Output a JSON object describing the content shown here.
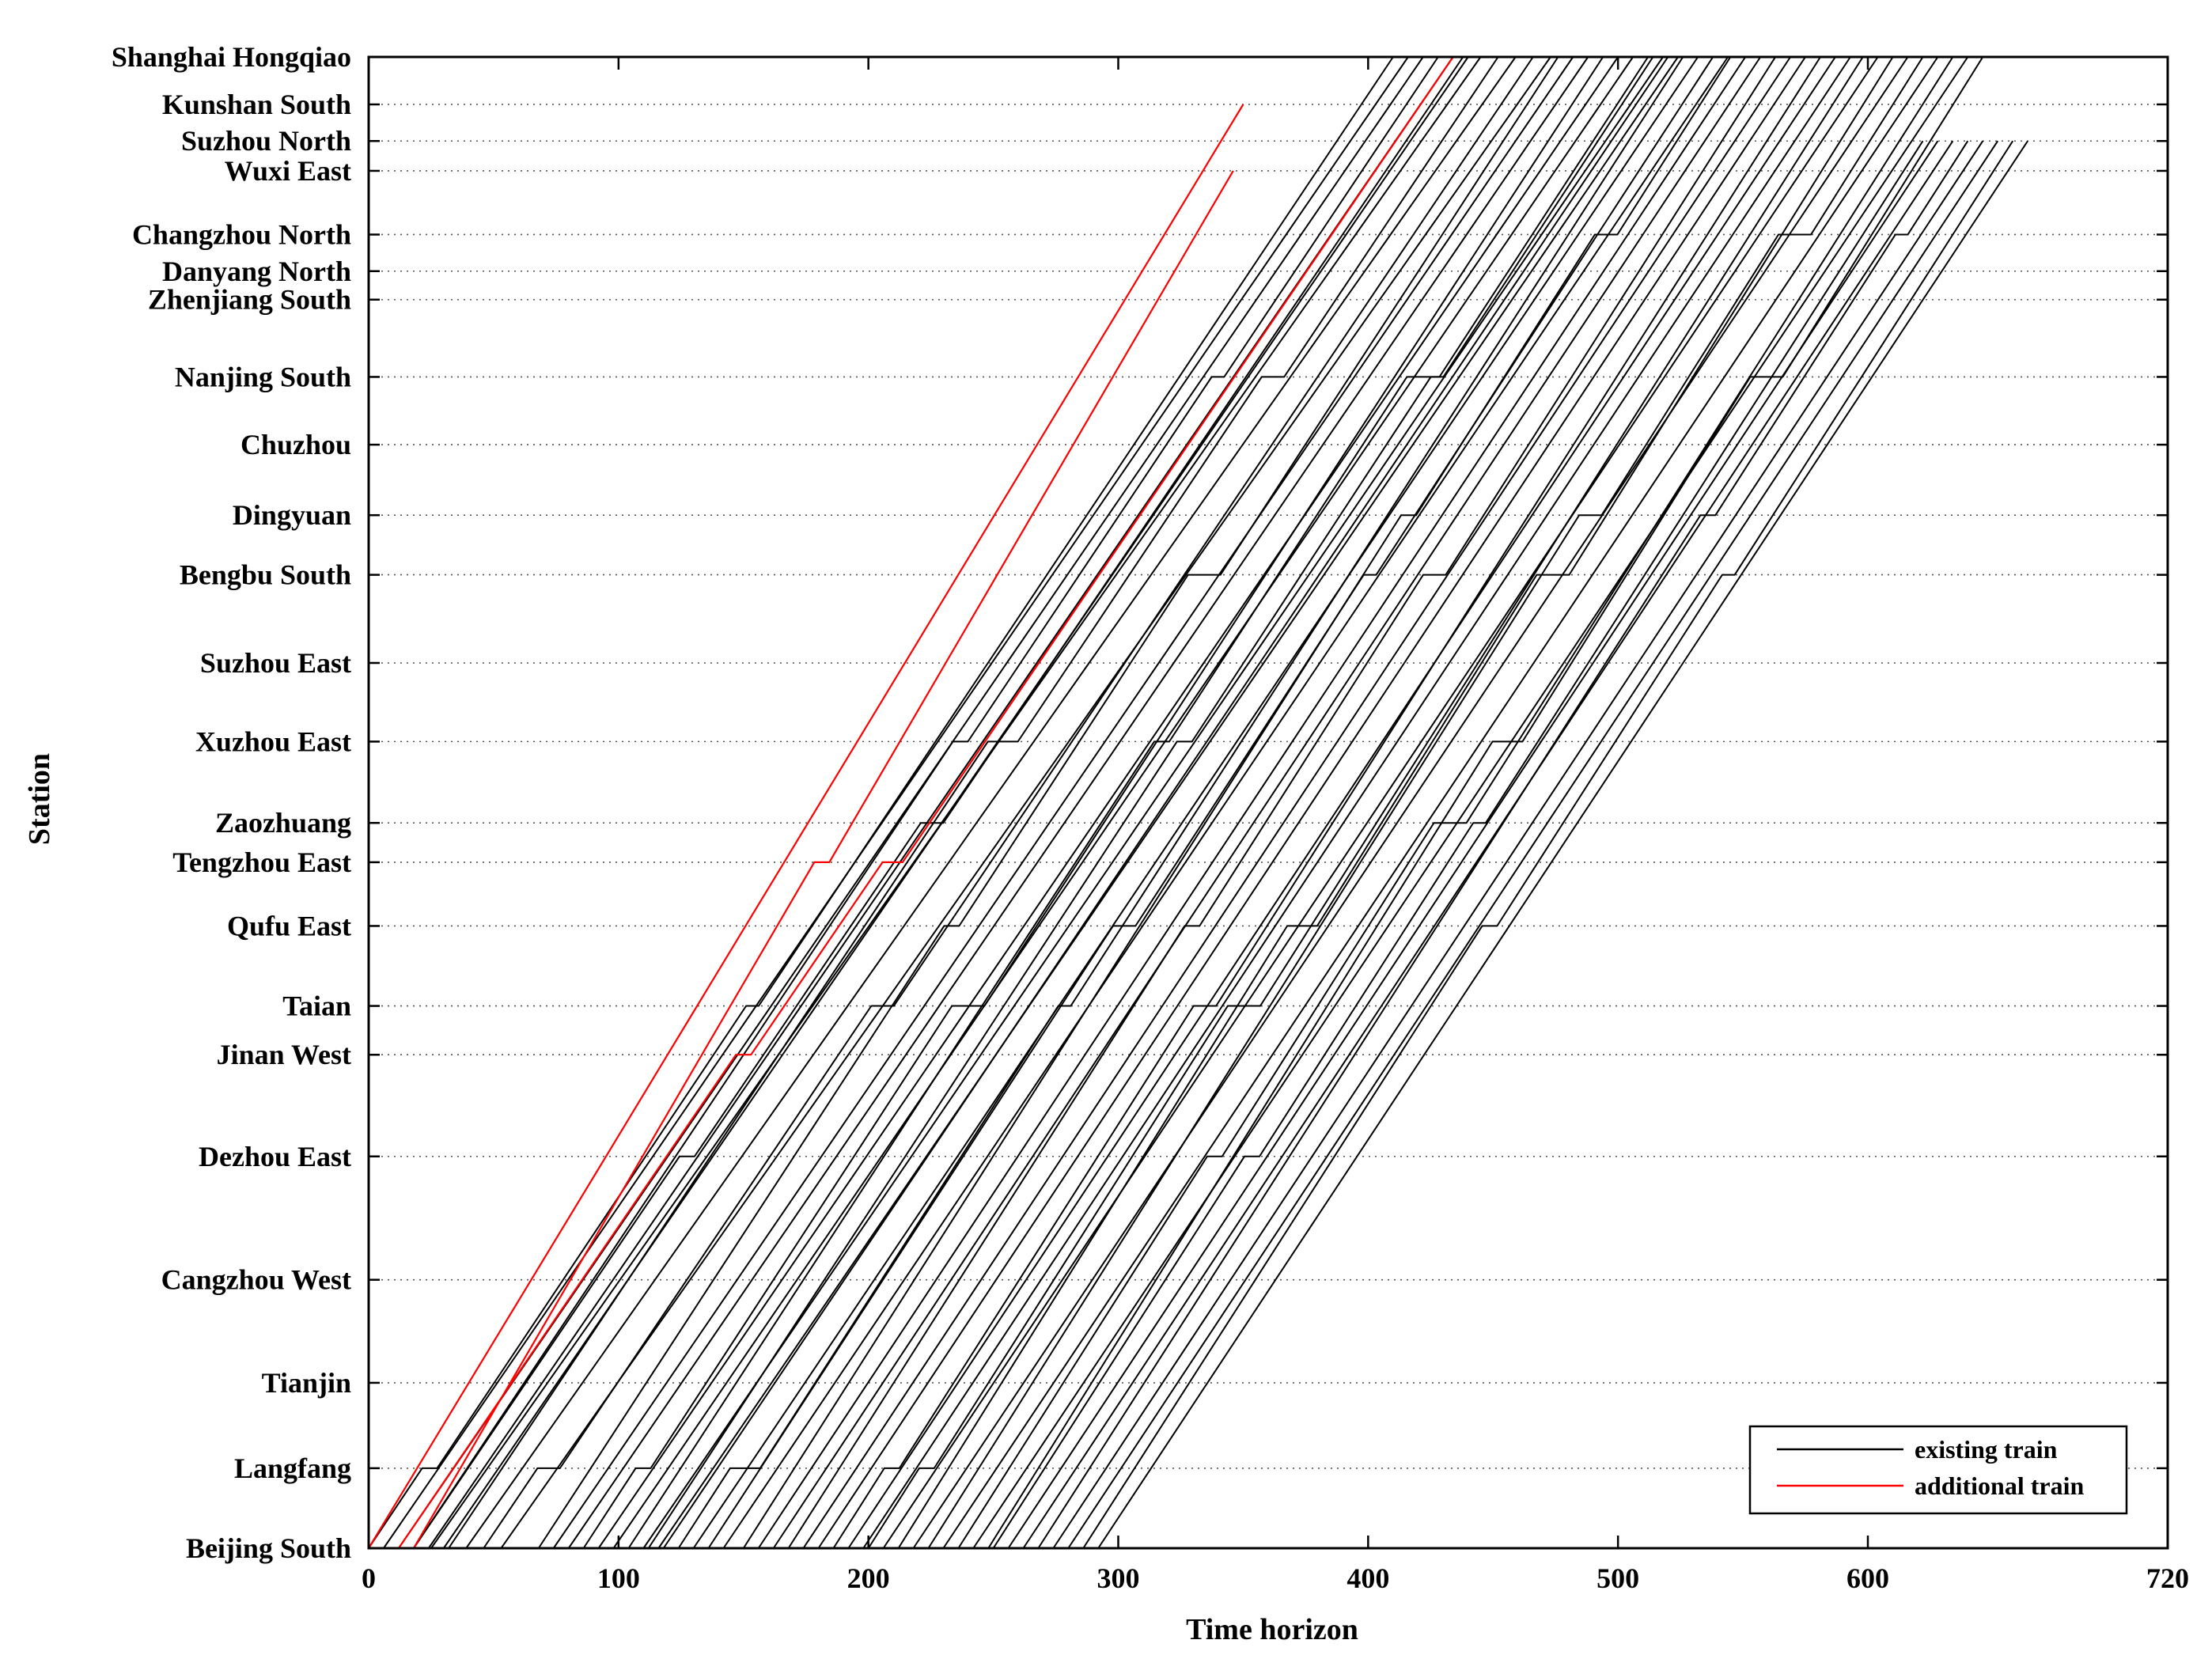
{
  "chart_data": {
    "type": "line",
    "title": "",
    "xlabel": "Time horizon",
    "ylabel": "Station",
    "xlim": [
      0,
      720
    ],
    "x_ticks": [
      "0",
      "100",
      "200",
      "300",
      "400",
      "500",
      "600",
      "720"
    ],
    "y_grid": "dotted",
    "legend": {
      "placement": "bottom-right",
      "entries": [
        {
          "label": "existing train",
          "color": "#000000"
        },
        {
          "label": "additional train",
          "color": "#ff0000"
        }
      ]
    },
    "stations": [
      {
        "name": "Beijing South",
        "km": 0
      },
      {
        "name": "Langfang",
        "km": 59
      },
      {
        "name": "Tianjin",
        "km": 122
      },
      {
        "name": "Cangzhou West",
        "km": 198
      },
      {
        "name": "Dezhou East",
        "km": 289
      },
      {
        "name": "Jinan West",
        "km": 364
      },
      {
        "name": "Taian",
        "km": 400
      },
      {
        "name": "Qufu East",
        "km": 459
      },
      {
        "name": "Tengzhou East",
        "km": 506
      },
      {
        "name": "Zaozhuang",
        "km": 535
      },
      {
        "name": "Xuzhou East",
        "km": 595
      },
      {
        "name": "Suzhou East",
        "km": 653
      },
      {
        "name": "Bengbu South",
        "km": 718
      },
      {
        "name": "Dingyuan",
        "km": 762
      },
      {
        "name": "Chuzhou",
        "km": 814
      },
      {
        "name": "Nanjing South",
        "km": 864
      },
      {
        "name": "Zhenjiang South",
        "km": 921
      },
      {
        "name": "Danyang North",
        "km": 942
      },
      {
        "name": "Changzhou North",
        "km": 969
      },
      {
        "name": "Wuxi East",
        "km": 1016
      },
      {
        "name": "Suzhou North",
        "km": 1038
      },
      {
        "name": "Kunshan South",
        "km": 1065
      },
      {
        "name": "Shanghai Hongqiao",
        "km": 1100
      }
    ],
    "series": [
      {
        "type": "additional",
        "color": "#ff0000",
        "trains": [
          {
            "depart": 0,
            "end_station": 21,
            "span": 350,
            "dwells": []
          },
          {
            "depart": 12,
            "end_station": 22,
            "span": 422,
            "dwells": [
              [
                5,
                6
              ],
              [
                8,
                8
              ]
            ]
          },
          {
            "depart": 18,
            "end_station": 19,
            "span": 328,
            "dwells": [
              [
                8,
                6
              ]
            ]
          }
        ]
      },
      {
        "type": "existing",
        "color": "#000000",
        "waves": [
          {
            "first_depart": 0,
            "count": 6,
            "spacing": 6,
            "end_station": 22,
            "span": 410,
            "dwell_every": 3
          },
          {
            "first_depart": 18,
            "count": 6,
            "spacing": 7,
            "end_station": 22,
            "span": 420,
            "dwell_every": 2
          },
          {
            "first_depart": 68,
            "count": 9,
            "spacing": 6,
            "end_station": 22,
            "span": 408,
            "dwell_every": 3
          },
          {
            "first_depart": 112,
            "count": 6,
            "spacing": 6,
            "end_station": 22,
            "span": 402,
            "dwell_every": 2
          },
          {
            "first_depart": 150,
            "count": 9,
            "spacing": 6,
            "end_station": 22,
            "span": 395,
            "dwell_every": 3
          },
          {
            "first_depart": 200,
            "count": 9,
            "spacing": 6,
            "end_station": 22,
            "span": 398,
            "dwell_every": 2
          },
          {
            "first_depart": 250,
            "count": 8,
            "spacing": 6,
            "end_station": 20,
            "span": 372,
            "dwell_every": 3
          }
        ]
      }
    ]
  }
}
